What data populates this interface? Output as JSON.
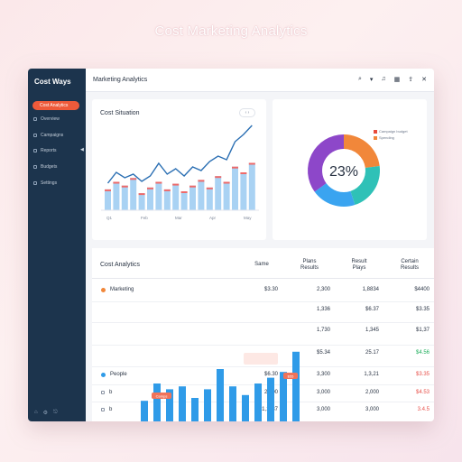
{
  "page": {
    "heading": "Cost Marketing Analytics"
  },
  "sidebar": {
    "brand": "Cost Ways",
    "active_item": "Cost Analytics",
    "items": [
      {
        "label": "Overview",
        "icon": "grid-icon"
      },
      {
        "label": "Campaigns",
        "icon": "megaphone-icon"
      },
      {
        "label": "Reports",
        "icon": "report-icon"
      },
      {
        "label": "Budgets",
        "icon": "wallet-icon"
      },
      {
        "label": "Settings",
        "icon": "gear-icon"
      }
    ]
  },
  "topbar": {
    "title": "Marketing Analytics",
    "icons": [
      "search-icon",
      "filter-icon",
      "bell-icon",
      "calendar-icon",
      "share-icon",
      "close-icon"
    ]
  },
  "cost_card": {
    "title": "Cost Situation",
    "toggle_label": "‹ ›",
    "x_labels": [
      "Q1",
      "Feb",
      "Mar",
      "Apr",
      "May"
    ],
    "colors": {
      "bar": "#a9d2f3",
      "bar_cap": "#ee6a6a",
      "line": "#2b6fb3"
    }
  },
  "donut_card": {
    "center_label": "23%",
    "legend": [
      {
        "label": "Campaign budget",
        "color": "#e84b3c"
      },
      {
        "label": "Spending",
        "color": "#f1873a"
      }
    ],
    "segments": [
      {
        "name": "orange",
        "value": 23,
        "color": "#f1873a"
      },
      {
        "name": "teal",
        "value": 22,
        "color": "#2fc1b7"
      },
      {
        "name": "blue",
        "value": 20,
        "color": "#3aa4f0"
      },
      {
        "name": "purple",
        "value": 35,
        "color": "#8d47c9"
      }
    ]
  },
  "table": {
    "title": "Cost Analytics",
    "headers": [
      "Same",
      "Plans Results",
      "Result Plays",
      "Certain Results"
    ],
    "rows": [
      {
        "label": "Marketing",
        "marker": "orange-dot",
        "values": [
          "$3.30",
          "2,300",
          "1,8834",
          "$4400"
        ],
        "value_colors": [
          "",
          "",
          "",
          ""
        ]
      },
      {
        "label": "",
        "marker": "",
        "values": [
          "",
          "1,336",
          "$6.37",
          "$3.35"
        ],
        "value_colors": [
          "",
          "",
          "",
          ""
        ]
      },
      {
        "label": "",
        "marker": "",
        "values": [
          "",
          "1,730",
          "1,345",
          "$1,37"
        ],
        "value_colors": [
          "",
          "",
          "",
          ""
        ]
      },
      {
        "label": "",
        "marker": "",
        "values": [
          "",
          "$5.34",
          "25.17",
          "$4.56"
        ],
        "value_colors": [
          "",
          "",
          "",
          "green"
        ]
      },
      {
        "label": "People",
        "marker": "blue-dot",
        "values": [
          "$6.30",
          "3,300",
          "1,3,21",
          "$3.35"
        ],
        "value_colors": [
          "",
          "",
          "",
          "red"
        ]
      },
      {
        "label": "b",
        "marker": "box",
        "values": [
          "2,000",
          "3,000",
          "2,000",
          "$4.53"
        ],
        "value_colors": [
          "",
          "",
          "",
          "red"
        ]
      },
      {
        "label": "b",
        "marker": "box",
        "values": [
          "1,1137",
          "3,000",
          "3,000",
          "3.4.5"
        ],
        "value_colors": [
          "",
          "",
          "",
          "red"
        ]
      }
    ],
    "mini_chart": {
      "badge_left": "Camps",
      "badge_right": "$55",
      "bar_color": "#2f9be8",
      "badge_color": "#f0735a"
    }
  }
}
